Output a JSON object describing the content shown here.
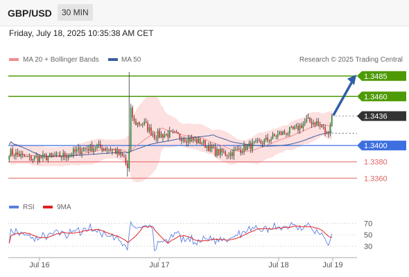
{
  "header": {
    "pair": "GBP/USD",
    "timeframe": "30 MIN",
    "datetime": "Friday, July 18, 2025 10:35:38 AM CET"
  },
  "legend": {
    "ma20_label": "MA 20 + Bollinger Bands",
    "ma50_label": "MA 50",
    "rsi_label": "RSI",
    "rsi_ma_label": "9MA",
    "credit": "Research © 2025 Trading Central"
  },
  "colors": {
    "ma20": "#f08c8c",
    "ma50": "#3a5fa0",
    "band_fill": "#fde0e0",
    "green": "#4e9a06",
    "blue_level": "#3d6fe0",
    "red_level": "#e06060",
    "current": "#333333",
    "rsi": "#5b7fe0",
    "rsi_ma": "#e02020",
    "arrow": "#2e5ea8"
  },
  "chart_data": [
    {
      "type": "candlestick",
      "title": "GBP/USD",
      "ylim": [
        1.3345,
        1.3495
      ],
      "x_ticks": [
        "Jul 16",
        "Jul 17",
        "Jul 18",
        "Jul 19"
      ],
      "levels": [
        {
          "value": 1.3485,
          "label": "1.3485",
          "style": "resistance-green-label"
        },
        {
          "value": 1.346,
          "label": "1.3460",
          "style": "resistance-green-label"
        },
        {
          "value": 1.3436,
          "label": "1.3436",
          "style": "current-price"
        },
        {
          "value": 1.34,
          "label": "1.3400",
          "style": "pivot-blue-label"
        },
        {
          "value": 1.338,
          "label": "1.3380",
          "style": "support-red-text"
        },
        {
          "value": 1.336,
          "label": "1.3360",
          "style": "support-red-text"
        }
      ],
      "forecast_arrow": {
        "from": 1.3436,
        "to": 1.3485
      },
      "series": [
        {
          "name": "MA 20 + Bollinger Bands"
        },
        {
          "name": "MA 50"
        }
      ]
    },
    {
      "type": "line",
      "title": "RSI",
      "ylim": [
        15,
        85
      ],
      "y_ticks": [
        70,
        50,
        30
      ],
      "series": [
        {
          "name": "RSI"
        },
        {
          "name": "9MA"
        }
      ]
    }
  ]
}
